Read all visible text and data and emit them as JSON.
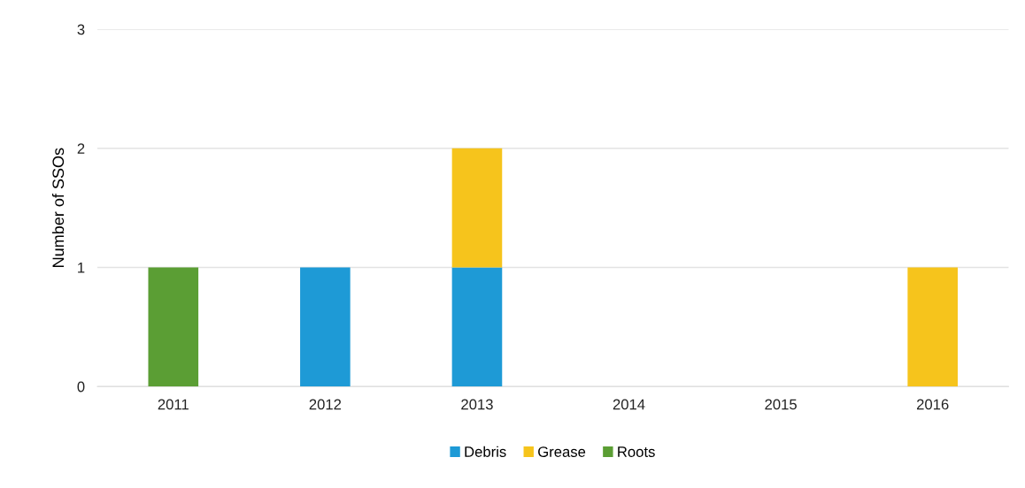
{
  "chart_data": {
    "type": "bar",
    "stacked": true,
    "ylabel": "Number of SSOs",
    "categories": [
      "2011",
      "2012",
      "2013",
      "2014",
      "2015",
      "2016"
    ],
    "series": [
      {
        "name": "Debris",
        "color": "#1e9ad6",
        "values": [
          0,
          1,
          1,
          0,
          0,
          0
        ]
      },
      {
        "name": "Grease",
        "color": "#f6c41c",
        "values": [
          0,
          0,
          1,
          0,
          0,
          1
        ]
      },
      {
        "name": "Roots",
        "color": "#5b9e34",
        "values": [
          1,
          0,
          0,
          0,
          0,
          0
        ]
      }
    ],
    "ylim": [
      0,
      3
    ],
    "yticks": [
      0,
      1,
      2,
      3
    ],
    "grid": "y",
    "legend": "bottom"
  }
}
